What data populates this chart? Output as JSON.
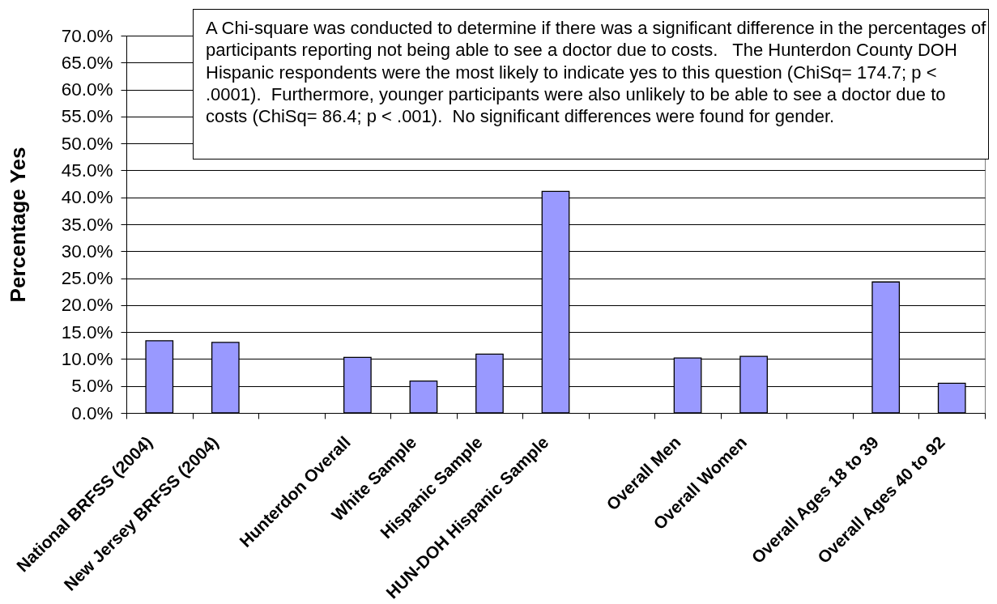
{
  "chart_data": {
    "type": "bar",
    "ylabel": "Percentage Yes",
    "categories": [
      "National BRFSS (2004)",
      "New Jersey BRFSS (2004)",
      null,
      "Hunterdon Overall",
      "White Sample",
      "Hispanic Sample",
      "HUN-DOH Hispanic Sample",
      null,
      "Overall Men",
      "Overall Women",
      null,
      "Overall Ages 18 to 39",
      "Overall Ages 40 to 92"
    ],
    "values": [
      13.4,
      13.1,
      null,
      10.3,
      5.9,
      10.9,
      41.1,
      null,
      10.2,
      10.5,
      null,
      24.3,
      5.5
    ],
    "color": "#9999ff",
    "ylim": [
      0,
      70
    ],
    "yticks": [
      {
        "value": 0,
        "label": "0.0%"
      },
      {
        "value": 5,
        "label": "5.0%"
      },
      {
        "value": 10,
        "label": "10.0%"
      },
      {
        "value": 15,
        "label": "15.0%"
      },
      {
        "value": 20,
        "label": "20.0%"
      },
      {
        "value": 25,
        "label": "25.0%"
      },
      {
        "value": 30,
        "label": "30.0%"
      },
      {
        "value": 35,
        "label": "35.0%"
      },
      {
        "value": 40,
        "label": "40.0%"
      },
      {
        "value": 45,
        "label": "45.0%"
      },
      {
        "value": 50,
        "label": "50.0%"
      },
      {
        "value": 55,
        "label": "55.0%"
      },
      {
        "value": 60,
        "label": "60.0%"
      },
      {
        "value": 65,
        "label": "65.0%"
      },
      {
        "value": 70,
        "label": "70.0%"
      }
    ],
    "grid": "y",
    "annotations": [
      "A Chi-square was conducted to determine if there was a significant difference in the percentages of participants reporting not being able to see a doctor due to costs.   The Hunterdon County DOH Hispanic respondents were the most likely to indicate yes to this question (ChiSq= 174.7; p < .0001).  Furthermore, younger participants were also unlikely to be able to see a doctor due to costs (ChiSq= 86.4; p < .001).  No significant differences were found for gender."
    ]
  }
}
